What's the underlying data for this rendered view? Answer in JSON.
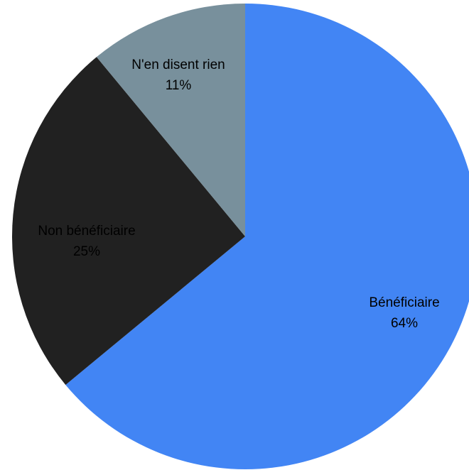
{
  "chart_data": {
    "type": "pie",
    "title": "",
    "start_angle": "12 o'clock",
    "direction": "clockwise",
    "slices": [
      {
        "label": "Bénéficiaire",
        "percent_label": "64%",
        "value": 64,
        "color": "#4285f4"
      },
      {
        "label": "Non bénéficiaire",
        "percent_label": "25%",
        "value": 25,
        "color": "#212121"
      },
      {
        "label": "N'en disent rien",
        "percent_label": "11%",
        "value": 11,
        "color": "#78909c"
      }
    ]
  }
}
